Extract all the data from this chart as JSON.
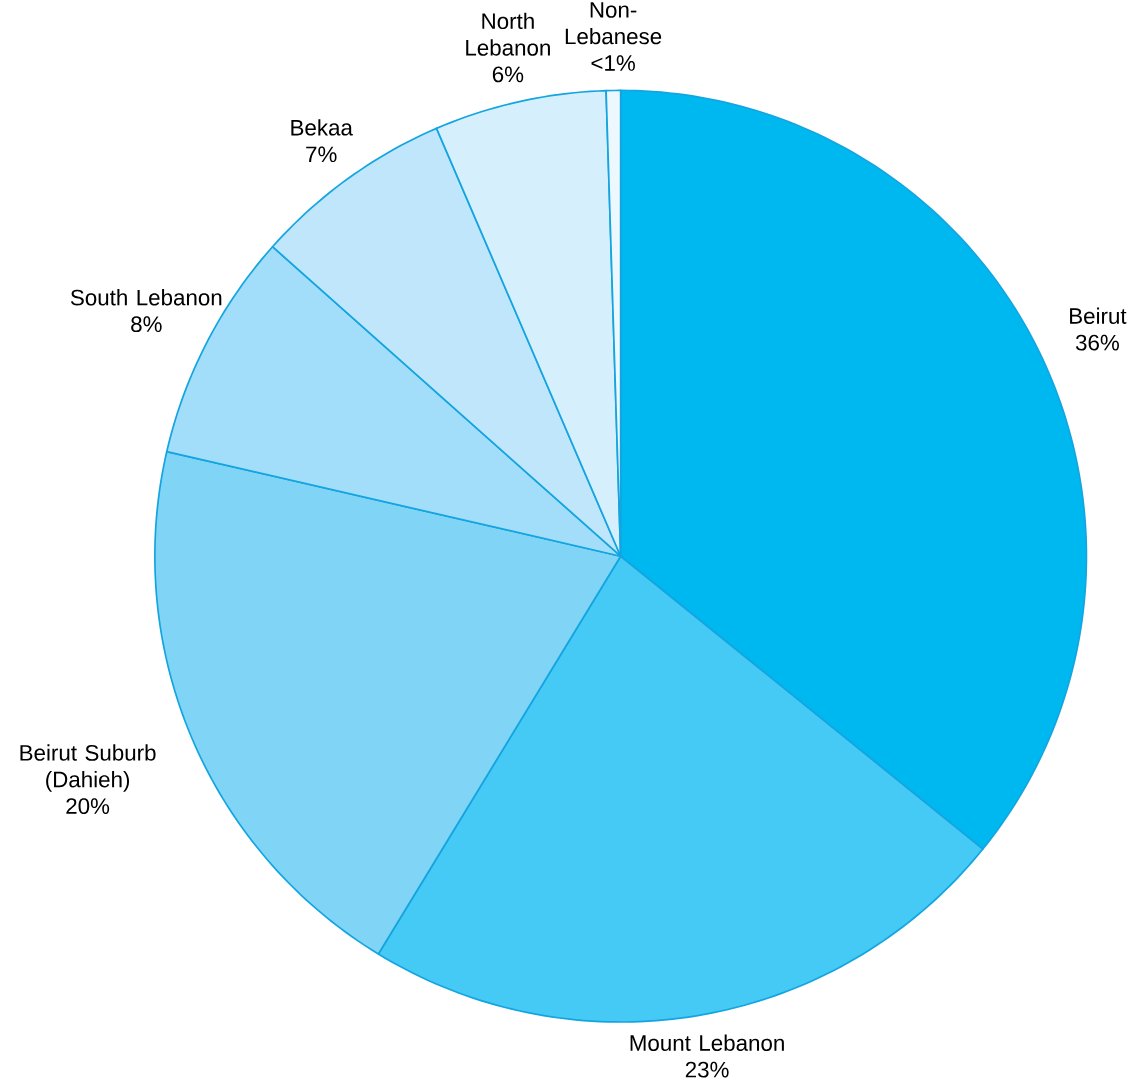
{
  "chart_data": {
    "type": "pie",
    "categories": [
      "Beirut",
      "Mount Lebanon",
      "Beirut Suburb (Dahieh)",
      "South Lebanon",
      "Bekaa",
      "North Lebanon",
      "Non-Lebanese"
    ],
    "values": [
      36,
      23,
      20,
      8,
      7,
      6,
      0.5
    ],
    "value_labels": [
      "36%",
      "23%",
      "20%",
      "8%",
      "7%",
      "6%",
      "<1%"
    ],
    "colors": [
      "#00b8f0",
      "#45c9f5",
      "#80d5f7",
      "#a2def9",
      "#bfe6fa",
      "#d6effc",
      "#ecf8fe"
    ]
  }
}
